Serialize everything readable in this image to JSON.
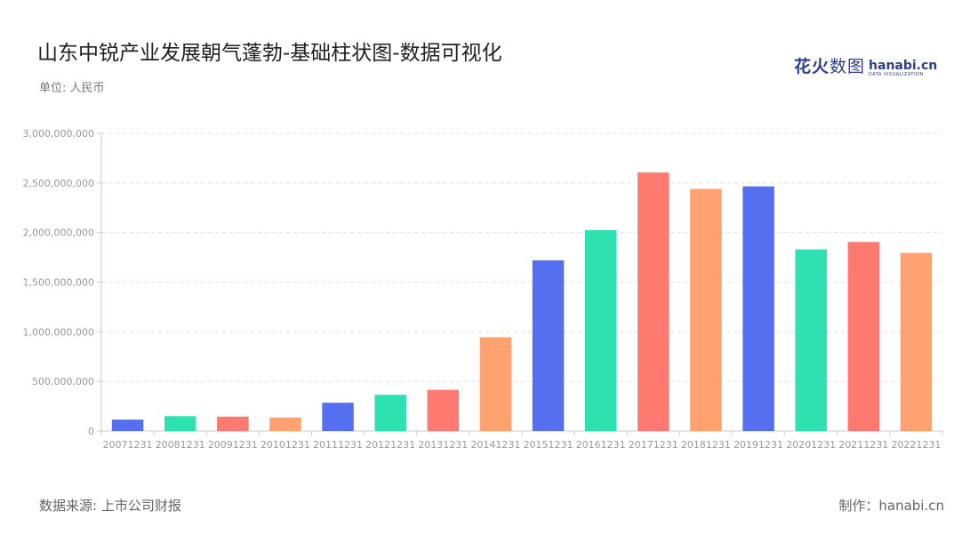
{
  "header": {
    "title": "山东中锐产业发展朝气蓬勃-基础柱状图-数据可视化",
    "unit": "单位: 人民币"
  },
  "logo": {
    "cn_main": "花火",
    "cn_light": "数图",
    "en_main": "hanabi.cn",
    "en_sub": "DATA VISUALIZATION"
  },
  "footer": {
    "source": "数据来源: 上市公司财报",
    "maker": "制作：hanabi.cn"
  },
  "colors": {
    "palette": [
      "#5470f0",
      "#2de2b0",
      "#ff7971",
      "#ffa26f"
    ],
    "grid": "#e0e0e0",
    "axis": "#cccccc",
    "label": "#999999"
  },
  "chart_data": {
    "type": "bar",
    "title": "山东中锐产业发展朝气蓬勃-基础柱状图-数据可视化",
    "xlabel": "",
    "ylabel": "",
    "ylim": [
      0,
      3000000000
    ],
    "yticks": [
      0,
      500000000,
      1000000000,
      1500000000,
      2000000000,
      2500000000,
      3000000000
    ],
    "ytick_labels": [
      "0",
      "500,000,000",
      "1,000,000,000",
      "1,500,000,000",
      "2,000,000,000",
      "2,500,000,000",
      "3,000,000,000"
    ],
    "grid": true,
    "legend": "none",
    "categories": [
      "20071231",
      "20081231",
      "20091231",
      "20101231",
      "20111231",
      "20121231",
      "20131231",
      "20141231",
      "20151231",
      "20161231",
      "20171231",
      "20181231",
      "20191231",
      "20201231",
      "20211231",
      "20221231"
    ],
    "values": [
      115000000,
      150000000,
      145000000,
      135000000,
      285000000,
      365000000,
      415000000,
      945000000,
      1720000000,
      2025000000,
      2605000000,
      2440000000,
      2465000000,
      1830000000,
      1905000000,
      1795000000
    ],
    "bar_colors": [
      "#5470f0",
      "#2de2b0",
      "#ff7971",
      "#ffa26f",
      "#5470f0",
      "#2de2b0",
      "#ff7971",
      "#ffa26f",
      "#5470f0",
      "#2de2b0",
      "#ff7971",
      "#ffa26f",
      "#5470f0",
      "#2de2b0",
      "#ff7971",
      "#ffa26f"
    ]
  }
}
